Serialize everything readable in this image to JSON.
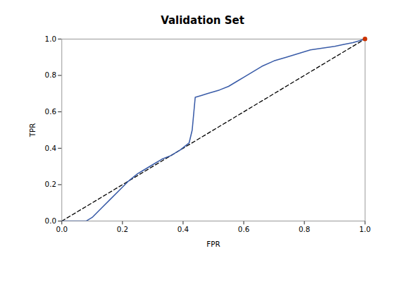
{
  "chart_data": {
    "type": "line",
    "title": "Validation Set",
    "xlabel": "FPR",
    "ylabel": "TPR",
    "x": [
      0.0,
      0.02,
      0.04,
      0.08,
      0.1,
      0.13,
      0.16,
      0.19,
      0.22,
      0.25,
      0.27,
      0.3,
      0.33,
      0.36,
      0.39,
      0.42,
      0.43,
      0.44,
      0.46,
      0.48,
      0.5,
      0.52,
      0.55,
      0.58,
      0.6,
      0.63,
      0.66,
      0.7,
      0.74,
      0.78,
      0.82,
      0.86,
      0.9,
      0.93,
      0.96,
      0.98,
      1.0
    ],
    "values": [
      0.0,
      0.0,
      0.0,
      0.0,
      0.02,
      0.07,
      0.12,
      0.17,
      0.22,
      0.26,
      0.28,
      0.31,
      0.34,
      0.36,
      0.39,
      0.43,
      0.5,
      0.68,
      0.69,
      0.7,
      0.71,
      0.72,
      0.74,
      0.77,
      0.79,
      0.82,
      0.85,
      0.88,
      0.9,
      0.92,
      0.94,
      0.95,
      0.96,
      0.97,
      0.98,
      0.99,
      1.0
    ],
    "color": "#3a5ca8",
    "reference_line": {
      "x": [
        0,
        1
      ],
      "y": [
        0,
        1
      ],
      "color": "#000000",
      "line_style": "dashed"
    },
    "endpoint": {
      "x": 1.0,
      "y": 1.0,
      "color": "#cc3300",
      "marker": "circle"
    },
    "xlim": [
      0.0,
      1.0
    ],
    "ylim": [
      0.0,
      1.0
    ],
    "xticks": [
      {
        "value": 0,
        "label": "0.0"
      },
      0.2,
      0.4,
      0.6,
      0.8,
      {
        "value": 1,
        "label": "1.0"
      }
    ],
    "yticks": [
      {
        "value": 0,
        "label": "0.0"
      },
      0.2,
      0.4,
      0.6,
      0.8,
      {
        "value": 1,
        "label": "1.0"
      }
    ],
    "grid": false
  }
}
